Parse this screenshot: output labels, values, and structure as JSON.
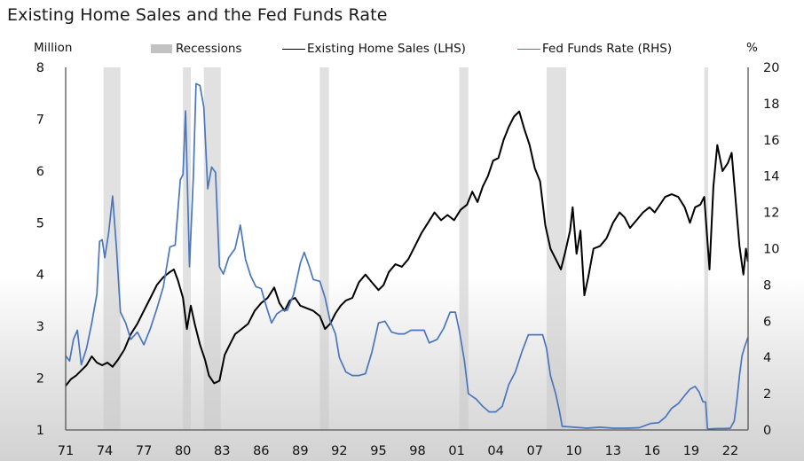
{
  "chart_data": {
    "type": "line",
    "title": "Existing Home Sales and the Fed Funds Rate",
    "left_axis_unit": "Million",
    "right_axis_unit": "%",
    "xlabel": "",
    "legend": {
      "placement": "top",
      "entries": [
        {
          "key": "recessions",
          "label": "Recessions",
          "kind": "band",
          "color": "#c2c2c2"
        },
        {
          "key": "home_sales",
          "label": "Existing Home Sales (LHS)",
          "kind": "line",
          "color": "#000000"
        },
        {
          "key": "fed_funds",
          "label": "Fed Funds Rate (RHS)",
          "kind": "line",
          "color": "#4a76bd"
        }
      ]
    },
    "x_range": [
      1971,
      2023.4
    ],
    "x_ticks": [
      1971,
      1974,
      1977,
      1980,
      1983,
      1986,
      1989,
      1992,
      1995,
      1998,
      2001,
      2004,
      2007,
      2010,
      2013,
      2016,
      2019,
      2022
    ],
    "x_tick_labels": [
      "71",
      "74",
      "77",
      "80",
      "83",
      "86",
      "89",
      "92",
      "95",
      "98",
      "01",
      "04",
      "07",
      "10",
      "13",
      "16",
      "19",
      "22"
    ],
    "y_left": {
      "range": [
        1,
        8
      ],
      "ticks": [
        1,
        2,
        3,
        4,
        5,
        6,
        7,
        8
      ],
      "tick_labels": [
        "1",
        "2",
        "3",
        "4",
        "5",
        "6",
        "7",
        "8"
      ]
    },
    "y_right": {
      "range": [
        0,
        20
      ],
      "ticks": [
        0,
        2,
        4,
        6,
        8,
        10,
        12,
        14,
        16,
        18,
        20
      ],
      "tick_labels": [
        "0",
        "2",
        "4",
        "6",
        "8",
        "10",
        "12",
        "14",
        "16",
        "18",
        "20"
      ]
    },
    "grid": false,
    "recessions": [
      [
        1973.9,
        1975.2
      ],
      [
        1980.0,
        1980.6
      ],
      [
        1981.6,
        1982.9
      ],
      [
        1990.5,
        1991.2
      ],
      [
        2001.2,
        2001.9
      ],
      [
        2007.9,
        2009.4
      ],
      [
        2020.0,
        2020.3
      ]
    ],
    "series": [
      {
        "name": "Existing Home Sales (LHS)",
        "axis": "left",
        "color": "#000000",
        "points": [
          [
            1971.0,
            1.85
          ],
          [
            1971.4,
            1.98
          ],
          [
            1971.8,
            2.05
          ],
          [
            1972.2,
            2.15
          ],
          [
            1972.6,
            2.25
          ],
          [
            1973.0,
            2.42
          ],
          [
            1973.4,
            2.3
          ],
          [
            1973.8,
            2.25
          ],
          [
            1974.2,
            2.3
          ],
          [
            1974.6,
            2.22
          ],
          [
            1975.0,
            2.35
          ],
          [
            1975.5,
            2.55
          ],
          [
            1976.0,
            2.85
          ],
          [
            1976.5,
            3.05
          ],
          [
            1977.0,
            3.3
          ],
          [
            1977.5,
            3.55
          ],
          [
            1978.0,
            3.8
          ],
          [
            1978.5,
            3.95
          ],
          [
            1979.0,
            4.05
          ],
          [
            1979.3,
            4.1
          ],
          [
            1979.6,
            3.9
          ],
          [
            1980.0,
            3.55
          ],
          [
            1980.3,
            2.95
          ],
          [
            1980.6,
            3.4
          ],
          [
            1980.9,
            3.05
          ],
          [
            1981.3,
            2.65
          ],
          [
            1981.7,
            2.35
          ],
          [
            1982.0,
            2.05
          ],
          [
            1982.4,
            1.9
          ],
          [
            1982.8,
            1.95
          ],
          [
            1983.2,
            2.45
          ],
          [
            1983.6,
            2.65
          ],
          [
            1984.0,
            2.85
          ],
          [
            1984.5,
            2.95
          ],
          [
            1985.0,
            3.05
          ],
          [
            1985.5,
            3.3
          ],
          [
            1986.0,
            3.45
          ],
          [
            1986.5,
            3.55
          ],
          [
            1987.0,
            3.75
          ],
          [
            1987.4,
            3.45
          ],
          [
            1987.8,
            3.3
          ],
          [
            1988.2,
            3.5
          ],
          [
            1988.6,
            3.55
          ],
          [
            1989.0,
            3.4
          ],
          [
            1989.5,
            3.35
          ],
          [
            1990.0,
            3.3
          ],
          [
            1990.5,
            3.2
          ],
          [
            1990.9,
            2.95
          ],
          [
            1991.3,
            3.05
          ],
          [
            1991.7,
            3.25
          ],
          [
            1992.1,
            3.4
          ],
          [
            1992.5,
            3.5
          ],
          [
            1993.0,
            3.55
          ],
          [
            1993.5,
            3.85
          ],
          [
            1994.0,
            4.0
          ],
          [
            1994.5,
            3.85
          ],
          [
            1995.0,
            3.7
          ],
          [
            1995.4,
            3.8
          ],
          [
            1995.8,
            4.05
          ],
          [
            1996.3,
            4.2
          ],
          [
            1996.8,
            4.15
          ],
          [
            1997.3,
            4.3
          ],
          [
            1997.8,
            4.55
          ],
          [
            1998.3,
            4.8
          ],
          [
            1998.8,
            5.0
          ],
          [
            1999.3,
            5.2
          ],
          [
            1999.8,
            5.05
          ],
          [
            2000.3,
            5.15
          ],
          [
            2000.8,
            5.05
          ],
          [
            2001.3,
            5.25
          ],
          [
            2001.8,
            5.35
          ],
          [
            2002.2,
            5.6
          ],
          [
            2002.6,
            5.4
          ],
          [
            2003.0,
            5.7
          ],
          [
            2003.4,
            5.9
          ],
          [
            2003.8,
            6.2
          ],
          [
            2004.2,
            6.25
          ],
          [
            2004.6,
            6.6
          ],
          [
            2005.0,
            6.85
          ],
          [
            2005.4,
            7.05
          ],
          [
            2005.8,
            7.15
          ],
          [
            2006.2,
            6.8
          ],
          [
            2006.6,
            6.5
          ],
          [
            2007.0,
            6.05
          ],
          [
            2007.4,
            5.8
          ],
          [
            2007.8,
            4.95
          ],
          [
            2008.2,
            4.5
          ],
          [
            2008.6,
            4.3
          ],
          [
            2009.0,
            4.1
          ],
          [
            2009.3,
            4.4
          ],
          [
            2009.7,
            4.85
          ],
          [
            2009.9,
            5.3
          ],
          [
            2010.2,
            4.4
          ],
          [
            2010.5,
            4.85
          ],
          [
            2010.8,
            3.6
          ],
          [
            2011.1,
            3.95
          ],
          [
            2011.5,
            4.5
          ],
          [
            2012.0,
            4.55
          ],
          [
            2012.5,
            4.7
          ],
          [
            2013.0,
            5.0
          ],
          [
            2013.5,
            5.2
          ],
          [
            2013.9,
            5.1
          ],
          [
            2014.3,
            4.9
          ],
          [
            2014.8,
            5.05
          ],
          [
            2015.3,
            5.2
          ],
          [
            2015.8,
            5.3
          ],
          [
            2016.2,
            5.2
          ],
          [
            2016.6,
            5.35
          ],
          [
            2017.0,
            5.5
          ],
          [
            2017.5,
            5.55
          ],
          [
            2018.0,
            5.5
          ],
          [
            2018.5,
            5.3
          ],
          [
            2018.9,
            5.0
          ],
          [
            2019.3,
            5.3
          ],
          [
            2019.7,
            5.35
          ],
          [
            2020.0,
            5.5
          ],
          [
            2020.4,
            4.1
          ],
          [
            2020.7,
            5.7
          ],
          [
            2021.0,
            6.5
          ],
          [
            2021.4,
            6.0
          ],
          [
            2021.8,
            6.15
          ],
          [
            2022.1,
            6.35
          ],
          [
            2022.4,
            5.45
          ],
          [
            2022.7,
            4.55
          ],
          [
            2023.0,
            4.0
          ],
          [
            2023.2,
            4.5
          ],
          [
            2023.35,
            4.25
          ]
        ]
      },
      {
        "name": "Fed Funds Rate (RHS)",
        "axis": "right",
        "color": "#4a76bd",
        "points": [
          [
            1971.0,
            4.1
          ],
          [
            1971.3,
            3.8
          ],
          [
            1971.6,
            5.0
          ],
          [
            1971.9,
            5.5
          ],
          [
            1972.2,
            3.6
          ],
          [
            1972.6,
            4.5
          ],
          [
            1973.0,
            5.9
          ],
          [
            1973.4,
            7.5
          ],
          [
            1973.6,
            10.4
          ],
          [
            1973.8,
            10.5
          ],
          [
            1974.0,
            9.5
          ],
          [
            1974.3,
            10.9
          ],
          [
            1974.6,
            12.9
          ],
          [
            1974.9,
            10.0
          ],
          [
            1975.2,
            6.5
          ],
          [
            1975.6,
            5.9
          ],
          [
            1976.0,
            5.0
          ],
          [
            1976.5,
            5.4
          ],
          [
            1977.0,
            4.7
          ],
          [
            1977.5,
            5.6
          ],
          [
            1978.0,
            6.7
          ],
          [
            1978.5,
            7.9
          ],
          [
            1979.0,
            10.1
          ],
          [
            1979.4,
            10.2
          ],
          [
            1979.8,
            13.8
          ],
          [
            1980.0,
            14.1
          ],
          [
            1980.2,
            17.6
          ],
          [
            1980.5,
            9.0
          ],
          [
            1980.8,
            14.0
          ],
          [
            1981.0,
            19.1
          ],
          [
            1981.3,
            19.0
          ],
          [
            1981.6,
            17.8
          ],
          [
            1981.9,
            13.3
          ],
          [
            1982.2,
            14.5
          ],
          [
            1982.5,
            14.2
          ],
          [
            1982.8,
            9.0
          ],
          [
            1983.1,
            8.6
          ],
          [
            1983.5,
            9.5
          ],
          [
            1984.0,
            10.0
          ],
          [
            1984.4,
            11.3
          ],
          [
            1984.8,
            9.4
          ],
          [
            1985.2,
            8.5
          ],
          [
            1985.6,
            7.9
          ],
          [
            1986.0,
            7.8
          ],
          [
            1986.4,
            6.8
          ],
          [
            1986.8,
            5.9
          ],
          [
            1987.2,
            6.4
          ],
          [
            1987.6,
            6.6
          ],
          [
            1988.0,
            6.6
          ],
          [
            1988.5,
            7.5
          ],
          [
            1989.0,
            9.2
          ],
          [
            1989.3,
            9.8
          ],
          [
            1989.7,
            9.0
          ],
          [
            1990.0,
            8.3
          ],
          [
            1990.5,
            8.2
          ],
          [
            1990.9,
            7.3
          ],
          [
            1991.3,
            6.0
          ],
          [
            1991.7,
            5.3
          ],
          [
            1992.0,
            4.0
          ],
          [
            1992.5,
            3.2
          ],
          [
            1993.0,
            3.0
          ],
          [
            1993.5,
            3.0
          ],
          [
            1994.0,
            3.1
          ],
          [
            1994.5,
            4.3
          ],
          [
            1995.0,
            5.9
          ],
          [
            1995.5,
            6.0
          ],
          [
            1996.0,
            5.4
          ],
          [
            1996.5,
            5.3
          ],
          [
            1997.0,
            5.3
          ],
          [
            1997.5,
            5.5
          ],
          [
            1998.0,
            5.5
          ],
          [
            1998.5,
            5.5
          ],
          [
            1998.9,
            4.8
          ],
          [
            1999.5,
            5.0
          ],
          [
            2000.0,
            5.6
          ],
          [
            2000.5,
            6.5
          ],
          [
            2000.9,
            6.5
          ],
          [
            2001.2,
            5.5
          ],
          [
            2001.6,
            3.8
          ],
          [
            2001.9,
            2.0
          ],
          [
            2002.5,
            1.7
          ],
          [
            2003.0,
            1.3
          ],
          [
            2003.5,
            1.0
          ],
          [
            2004.0,
            1.0
          ],
          [
            2004.5,
            1.3
          ],
          [
            2005.0,
            2.5
          ],
          [
            2005.5,
            3.2
          ],
          [
            2006.0,
            4.3
          ],
          [
            2006.5,
            5.25
          ],
          [
            2007.0,
            5.25
          ],
          [
            2007.6,
            5.25
          ],
          [
            2007.9,
            4.5
          ],
          [
            2008.2,
            3.0
          ],
          [
            2008.6,
            2.0
          ],
          [
            2008.9,
            1.0
          ],
          [
            2009.1,
            0.2
          ],
          [
            2010.0,
            0.15
          ],
          [
            2011.0,
            0.1
          ],
          [
            2012.0,
            0.15
          ],
          [
            2013.0,
            0.1
          ],
          [
            2014.0,
            0.1
          ],
          [
            2015.0,
            0.12
          ],
          [
            2015.9,
            0.36
          ],
          [
            2016.5,
            0.4
          ],
          [
            2017.0,
            0.7
          ],
          [
            2017.5,
            1.2
          ],
          [
            2018.0,
            1.45
          ],
          [
            2018.5,
            1.9
          ],
          [
            2018.9,
            2.25
          ],
          [
            2019.3,
            2.4
          ],
          [
            2019.6,
            2.1
          ],
          [
            2019.9,
            1.55
          ],
          [
            2020.1,
            1.55
          ],
          [
            2020.25,
            0.05
          ],
          [
            2021.0,
            0.08
          ],
          [
            2021.6,
            0.08
          ],
          [
            2022.0,
            0.1
          ],
          [
            2022.3,
            0.5
          ],
          [
            2022.5,
            1.6
          ],
          [
            2022.7,
            3.0
          ],
          [
            2022.9,
            4.1
          ],
          [
            2023.1,
            4.6
          ],
          [
            2023.35,
            5.1
          ]
        ]
      }
    ]
  }
}
